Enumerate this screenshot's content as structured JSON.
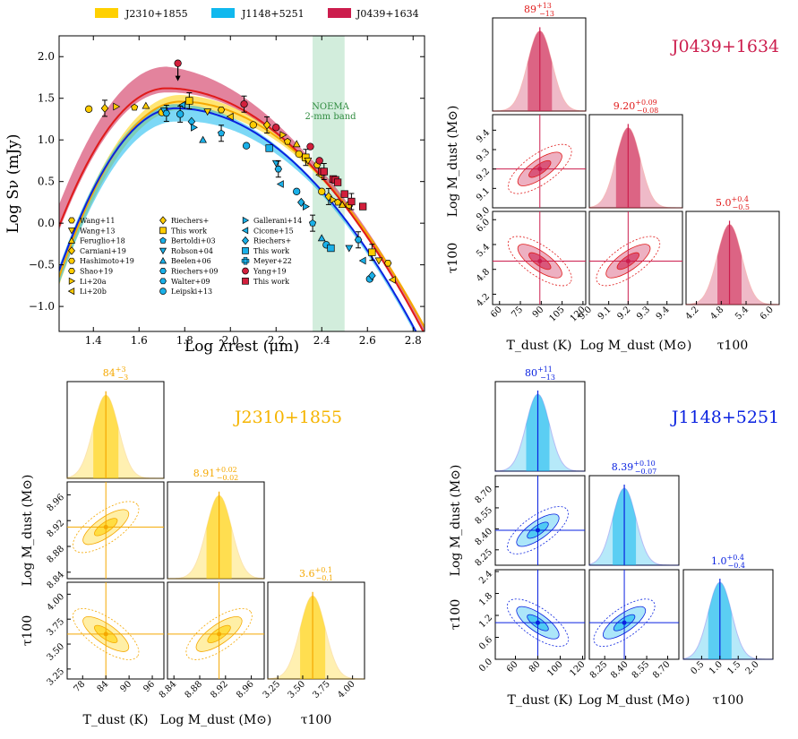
{
  "colors": {
    "J2310": "#f5a800",
    "J2310_fill": "#ffd000",
    "J1148": "#0a22e0",
    "J1148_fill": "#10b8ee",
    "J0439": "#e01a1a",
    "J0439_fill": "#cc1d4d",
    "noema": "#bfe6cd",
    "noema_text": "#2e8b3e"
  },
  "legend_top": [
    {
      "key": "J2310",
      "label": "J2310+1855"
    },
    {
      "key": "J1148",
      "label": "J1148+5251"
    },
    {
      "key": "J0439",
      "label": "J0439+1634"
    }
  ],
  "legend_points": [
    [
      "Wang+11",
      "Wang+13",
      "Feruglio+18",
      "Carniani+19",
      "Hashimoto+19",
      "Shao+19",
      "Li+20a",
      "Li+20b"
    ],
    [
      "Riechers+",
      "This work",
      "Bertoldi+03",
      "Robson+04",
      "Beelen+06",
      "Riechers+09",
      "Walter+09",
      "Leipski+13"
    ],
    [
      "Gallerani+14",
      "Cicone+15",
      "Riechers+",
      "This work",
      "Meyer+22",
      "Yang+19",
      "This work"
    ]
  ],
  "noema_label": [
    "NOEMA",
    "2-mm band"
  ],
  "chart_data": [
    {
      "type": "scatter",
      "title": "",
      "xlabel": "Log λrest (μm)",
      "ylabel": "Log Sν (mJy)",
      "xlim": [
        1.25,
        2.85
      ],
      "ylim": [
        -1.3,
        2.25
      ],
      "xticks": [
        "1.4",
        "1.6",
        "1.8",
        "2.0",
        "2.2",
        "2.4",
        "2.6",
        "2.8"
      ],
      "yticks": [
        "−1.0",
        "−0.5",
        "0.0",
        "0.5",
        "1.0",
        "1.5",
        "2.0"
      ],
      "band": [
        2.36,
        2.5
      ],
      "models": [
        {
          "name": "J2310+1855",
          "peak_x": 1.78,
          "peak_y": 1.46,
          "beta": 1.9,
          "band_lo": 0.1,
          "band_hi": 0.08
        },
        {
          "name": "J1148+5251",
          "peak_x": 1.76,
          "peak_y": 1.38,
          "beta": 2.0,
          "band_lo": 0.16,
          "band_hi": 0.05
        },
        {
          "name": "J0439+1634",
          "peak_x": 1.72,
          "peak_y": 1.62,
          "beta": 1.8,
          "band_lo": 0.05,
          "band_hi": 0.26
        }
      ],
      "series": [
        {
          "name": "J2310+1855",
          "points": [
            [
              1.38,
              1.37
            ],
            [
              1.45,
              1.38
            ],
            [
              1.5,
              1.4
            ],
            [
              1.58,
              1.39
            ],
            [
              1.63,
              1.41
            ],
            [
              1.7,
              1.33
            ],
            [
              1.82,
              1.47
            ],
            [
              1.9,
              1.34
            ],
            [
              1.96,
              1.36
            ],
            [
              2.0,
              1.28
            ],
            [
              2.1,
              1.18
            ],
            [
              2.16,
              1.18
            ],
            [
              2.23,
              1.06
            ],
            [
              2.25,
              0.98
            ],
            [
              2.29,
              0.95
            ],
            [
              2.3,
              0.83
            ],
            [
              2.33,
              0.79
            ],
            [
              2.34,
              0.75
            ],
            [
              2.38,
              0.7
            ],
            [
              2.39,
              0.58
            ],
            [
              2.4,
              0.38
            ],
            [
              2.43,
              0.32
            ],
            [
              2.45,
              0.28
            ],
            [
              2.47,
              0.25
            ],
            [
              2.49,
              0.22
            ],
            [
              2.52,
              0.22
            ],
            [
              2.62,
              -0.35
            ],
            [
              2.65,
              -0.45
            ],
            [
              2.69,
              -0.48
            ],
            [
              2.71,
              -0.68
            ]
          ]
        },
        {
          "name": "J1148+5251",
          "points": [
            [
              1.71,
              1.35
            ],
            [
              1.72,
              1.32
            ],
            [
              1.79,
              1.42
            ],
            [
              1.78,
              1.31
            ],
            [
              1.83,
              1.22
            ],
            [
              1.84,
              1.15
            ],
            [
              1.96,
              1.08
            ],
            [
              1.88,
              1.0
            ],
            [
              2.07,
              0.93
            ],
            [
              2.17,
              0.9
            ],
            [
              2.2,
              0.72
            ],
            [
              2.21,
              0.65
            ],
            [
              2.22,
              0.47
            ],
            [
              2.29,
              0.38
            ],
            [
              2.31,
              0.25
            ],
            [
              2.33,
              0.2
            ],
            [
              2.36,
              0.0
            ],
            [
              2.4,
              -0.18
            ],
            [
              2.42,
              -0.26
            ],
            [
              2.44,
              -0.3
            ],
            [
              2.52,
              -0.3
            ],
            [
              2.56,
              -0.2
            ],
            [
              2.58,
              -0.45
            ],
            [
              2.61,
              -0.67
            ],
            [
              2.62,
              -0.63
            ]
          ]
        },
        {
          "name": "J0439+1634",
          "points": [
            [
              1.77,
              1.92
            ],
            [
              2.06,
              1.43
            ],
            [
              2.2,
              1.15
            ],
            [
              2.35,
              0.92
            ],
            [
              2.39,
              0.75
            ],
            [
              2.4,
              0.62
            ],
            [
              2.41,
              0.62
            ],
            [
              2.45,
              0.53
            ],
            [
              2.46,
              0.52
            ],
            [
              2.47,
              0.49
            ],
            [
              2.5,
              0.35
            ],
            [
              2.53,
              0.26
            ],
            [
              2.58,
              0.2
            ]
          ]
        }
      ]
    },
    {
      "type": "corner",
      "name": "J0439+1634",
      "key": "J0439",
      "labels": [
        "T_dust (K)",
        "Log M_dust (M⊙)",
        "τ100"
      ],
      "medians": [
        89,
        9.2,
        5.0
      ],
      "titles": [
        {
          "val": "89",
          "up": "+13",
          "lo": "−13"
        },
        {
          "val": "9.20",
          "up": "+0.09",
          "lo": "−0.08"
        },
        {
          "val": "5.0",
          "up": "+0.4",
          "lo": "−0.5"
        }
      ],
      "ranges": [
        [
          55,
          122
        ],
        [
          9.0,
          9.48
        ],
        [
          3.95,
          6.2
        ]
      ],
      "ticks": [
        [
          "60",
          "75",
          "90",
          "105",
          "120"
        ],
        [
          "9.0",
          "9.1",
          "9.2",
          "9.3",
          "9.4"
        ],
        [
          "4.2",
          "4.8",
          "5.4",
          "6.0"
        ]
      ]
    },
    {
      "type": "corner",
      "name": "J2310+1855",
      "key": "J2310",
      "labels": [
        "T_dust (K)",
        "Log M_dust (M⊙)",
        "τ100"
      ],
      "medians": [
        84,
        8.91,
        3.6
      ],
      "titles": [
        {
          "val": "84",
          "up": "+3",
          "lo": "−3"
        },
        {
          "val": "8.91",
          "up": "+0.02",
          "lo": "−0.02"
        },
        {
          "val": "3.6",
          "up": "+0.1",
          "lo": "−0.1"
        }
      ],
      "ranges": [
        [
          74,
          99
        ],
        [
          8.83,
          8.98
        ],
        [
          3.15,
          4.12
        ]
      ],
      "ticks": [
        [
          "78",
          "84",
          "90",
          "96"
        ],
        [
          "8.84",
          "8.88",
          "8.92",
          "8.96"
        ],
        [
          "3.25",
          "3.50",
          "3.75",
          "4.00"
        ]
      ]
    },
    {
      "type": "corner",
      "name": "J1148+5251",
      "key": "J1148",
      "labels": [
        "T_dust (K)",
        "Log M_dust (M⊙)",
        "τ100"
      ],
      "medians": [
        80,
        8.39,
        1.0
      ],
      "titles": [
        {
          "val": "80",
          "up": "+11",
          "lo": "−13"
        },
        {
          "val": "8.39",
          "up": "+0.10",
          "lo": "−0.07"
        },
        {
          "val": "1.0",
          "up": "+0.4",
          "lo": "−0.4"
        }
      ],
      "ranges": [
        [
          42,
          122
        ],
        [
          8.14,
          8.78
        ],
        [
          0.0,
          2.45
        ]
      ],
      "ticks": [
        [
          "60",
          "80",
          "100",
          "120"
        ],
        [
          "8.25",
          "8.40",
          "8.55",
          "8.70"
        ],
        [
          "0.0",
          "0.6",
          "1.2",
          "1.8",
          "2.4"
        ],
        [
          "0.5",
          "1.0",
          "1.5",
          "2.0"
        ]
      ]
    }
  ]
}
